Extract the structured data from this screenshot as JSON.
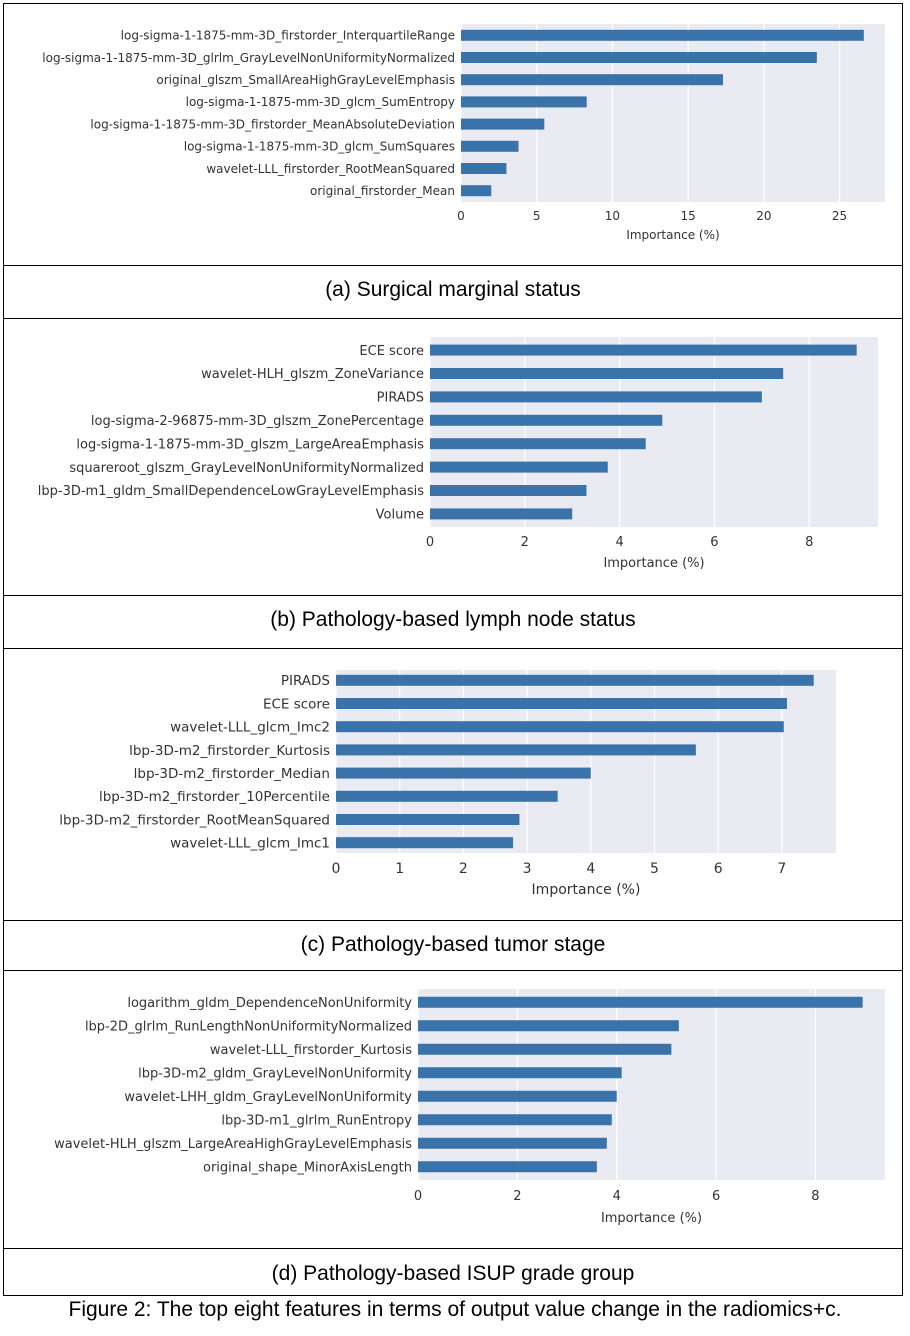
{
  "chart_data": [
    {
      "type": "bar",
      "orientation": "horizontal",
      "caption": "(a) Surgical marginal status",
      "xlabel": "Importance (%)",
      "xlim": [
        0,
        28
      ],
      "xticks": [
        0,
        5,
        10,
        15,
        20,
        25
      ],
      "grid": true,
      "bar_color": "#3a73aa",
      "background": "#eaeaf2",
      "categories": [
        "log-sigma-1-1875-mm-3D_firstorder_InterquartileRange",
        "log-sigma-1-1875-mm-3D_glrlm_GrayLevelNonUniformityNormalized",
        "original_glszm_SmallAreaHighGrayLevelEmphasis",
        "log-sigma-1-1875-mm-3D_glcm_SumEntropy",
        "log-sigma-1-1875-mm-3D_firstorder_MeanAbsoluteDeviation",
        "log-sigma-1-1875-mm-3D_glcm_SumSquares",
        "wavelet-LLL_firstorder_RootMeanSquared",
        "original_firstorder_Mean"
      ],
      "values": [
        26.6,
        23.5,
        17.3,
        8.3,
        5.5,
        3.8,
        3.0,
        2.0
      ]
    },
    {
      "type": "bar",
      "orientation": "horizontal",
      "caption": "(b) Pathology-based lymph node status",
      "xlabel": "Importance (%)",
      "xlim": [
        0,
        9.45
      ],
      "xticks": [
        0,
        2,
        4,
        6,
        8
      ],
      "grid": true,
      "bar_color": "#3a73aa",
      "background": "#eaeaf2",
      "categories": [
        "ECE score",
        "wavelet-HLH_glszm_ZoneVariance",
        "PIRADS",
        "log-sigma-2-96875-mm-3D_glszm_ZonePercentage",
        "log-sigma-1-1875-mm-3D_glszm_LargeAreaEmphasis",
        "squareroot_glszm_GrayLevelNonUniformityNormalized",
        "lbp-3D-m1_gldm_SmallDependenceLowGrayLevelEmphasis",
        "Volume"
      ],
      "values": [
        9.0,
        7.45,
        7.0,
        4.9,
        4.55,
        3.75,
        3.3,
        3.0
      ]
    },
    {
      "type": "bar",
      "orientation": "horizontal",
      "caption": "(c) Pathology-based tumor stage",
      "xlabel": "Importance (%)",
      "xlim": [
        0,
        7.85
      ],
      "xticks": [
        0,
        1,
        2,
        3,
        4,
        5,
        6,
        7
      ],
      "grid": true,
      "bar_color": "#3a73aa",
      "background": "#eaeaf2",
      "categories": [
        "PIRADS",
        "ECE score",
        "wavelet-LLL_glcm_Imc2",
        "lbp-3D-m2_firstorder_Kurtosis",
        "lbp-3D-m2_firstorder_Median",
        "lbp-3D-m2_firstorder_10Percentile",
        "lbp-3D-m2_firstorder_RootMeanSquared",
        "wavelet-LLL_glcm_Imc1"
      ],
      "values": [
        7.5,
        7.08,
        7.03,
        5.65,
        4.0,
        3.48,
        2.88,
        2.78
      ]
    },
    {
      "type": "bar",
      "orientation": "horizontal",
      "caption": "(d) Pathology-based ISUP grade group",
      "xlabel": "Importance (%)",
      "xlim": [
        0,
        9.4
      ],
      "xticks": [
        0,
        2,
        4,
        6,
        8
      ],
      "grid": true,
      "bar_color": "#3a73aa",
      "background": "#eaeaf2",
      "categories": [
        "logarithm_gldm_DependenceNonUniformity",
        "lbp-2D_glrlm_RunLengthNonUniformityNormalized",
        "wavelet-LLL_firstorder_Kurtosis",
        "lbp-3D-m2_gldm_GrayLevelNonUniformity",
        "wavelet-LHH_gldm_GrayLevelNonUniformity",
        "lbp-3D-m1_glrlm_RunEntropy",
        "wavelet-HLH_glszm_LargeAreaHighGrayLevelEmphasis",
        "original_shape_MinorAxisLength"
      ],
      "values": [
        8.95,
        5.25,
        5.1,
        4.1,
        4.0,
        3.9,
        3.8,
        3.6
      ]
    }
  ],
  "figure_caption": "Figure 2: The top eight features in terms of output value change in the radiomics+c."
}
